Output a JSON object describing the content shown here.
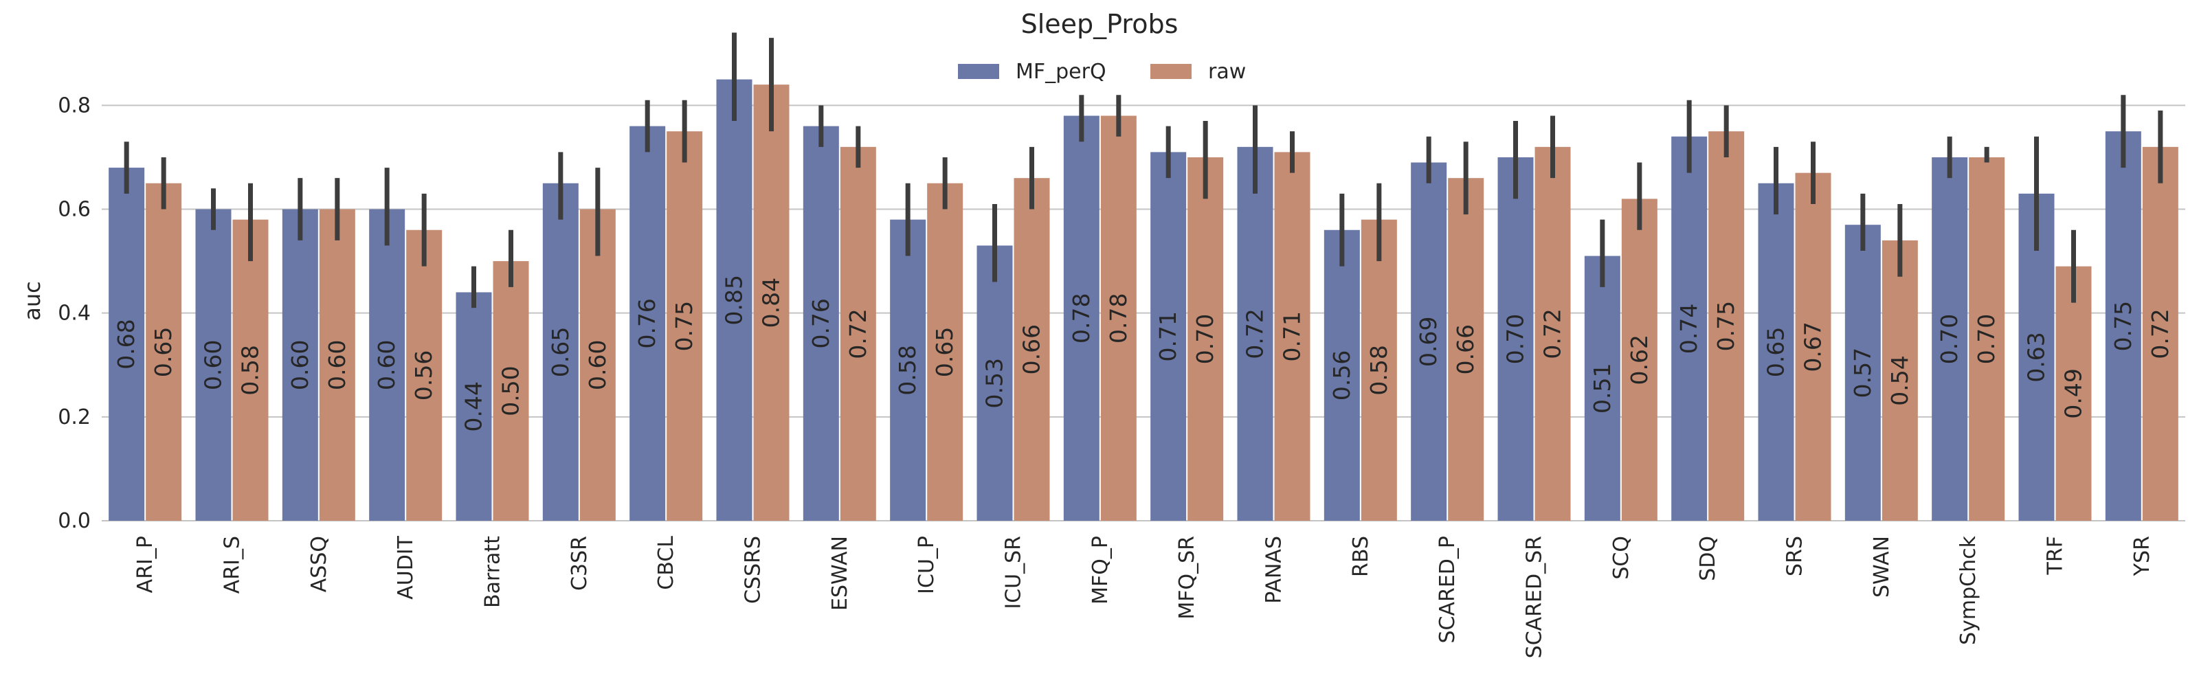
{
  "chart_data": {
    "type": "bar",
    "title": "Sleep_Probs",
    "xlabel": "",
    "ylabel": "auc",
    "ylim": [
      0,
      0.95
    ],
    "yticks": [
      "0.0",
      "0.2",
      "0.4",
      "0.6",
      "0.8"
    ],
    "grid": true,
    "legend_position": "top-center",
    "categories": [
      "ARI_P",
      "ARI_S",
      "ASSQ",
      "AUDIT",
      "Barratt",
      "C3SR",
      "CBCL",
      "CSSRS",
      "ESWAN",
      "ICU_P",
      "ICU_SR",
      "MFQ_P",
      "MFQ_SR",
      "PANAS",
      "RBS",
      "SCARED_P",
      "SCARED_SR",
      "SCQ",
      "SDQ",
      "SRS",
      "SWAN",
      "SympChck",
      "TRF",
      "YSR"
    ],
    "series": [
      {
        "name": "MF_perQ",
        "color": "#6a78a8",
        "values": [
          0.68,
          0.6,
          0.6,
          0.6,
          0.44,
          0.65,
          0.76,
          0.85,
          0.76,
          0.58,
          0.53,
          0.78,
          0.71,
          0.72,
          0.56,
          0.69,
          0.7,
          0.51,
          0.74,
          0.65,
          0.57,
          0.7,
          0.63,
          0.75
        ],
        "labels": [
          "0.68",
          "0.60",
          "0.60",
          "0.60",
          "0.44",
          "0.65",
          "0.76",
          "0.85",
          "0.76",
          "0.58",
          "0.53",
          "0.78",
          "0.71",
          "0.72",
          "0.56",
          "0.69",
          "0.70",
          "0.51",
          "0.74",
          "0.65",
          "0.57",
          "0.70",
          "0.63",
          "0.75"
        ],
        "err_low": [
          0.63,
          0.56,
          0.54,
          0.53,
          0.41,
          0.58,
          0.71,
          0.77,
          0.72,
          0.51,
          0.46,
          0.73,
          0.66,
          0.63,
          0.49,
          0.65,
          0.62,
          0.45,
          0.67,
          0.59,
          0.52,
          0.66,
          0.52,
          0.68
        ],
        "err_high": [
          0.73,
          0.64,
          0.66,
          0.68,
          0.49,
          0.71,
          0.81,
          0.94,
          0.8,
          0.65,
          0.61,
          0.82,
          0.76,
          0.8,
          0.63,
          0.74,
          0.77,
          0.58,
          0.81,
          0.72,
          0.63,
          0.74,
          0.74,
          0.82
        ]
      },
      {
        "name": "raw",
        "color": "#c48d73",
        "values": [
          0.65,
          0.58,
          0.6,
          0.56,
          0.5,
          0.6,
          0.75,
          0.84,
          0.72,
          0.65,
          0.66,
          0.78,
          0.7,
          0.71,
          0.58,
          0.66,
          0.72,
          0.62,
          0.75,
          0.67,
          0.54,
          0.7,
          0.49,
          0.72
        ],
        "labels": [
          "0.65",
          "0.58",
          "0.60",
          "0.56",
          "0.50",
          "0.60",
          "0.75",
          "0.84",
          "0.72",
          "0.65",
          "0.66",
          "0.78",
          "0.70",
          "0.71",
          "0.58",
          "0.66",
          "0.72",
          "0.62",
          "0.75",
          "0.67",
          "0.54",
          "0.70",
          "0.49",
          "0.72"
        ],
        "err_low": [
          0.6,
          0.5,
          0.54,
          0.49,
          0.45,
          0.51,
          0.69,
          0.75,
          0.68,
          0.6,
          0.6,
          0.74,
          0.62,
          0.67,
          0.5,
          0.59,
          0.66,
          0.56,
          0.7,
          0.61,
          0.47,
          0.69,
          0.42,
          0.65
        ],
        "err_high": [
          0.7,
          0.65,
          0.66,
          0.63,
          0.56,
          0.68,
          0.81,
          0.93,
          0.76,
          0.7,
          0.72,
          0.82,
          0.77,
          0.75,
          0.65,
          0.73,
          0.78,
          0.69,
          0.8,
          0.73,
          0.61,
          0.72,
          0.56,
          0.79
        ]
      }
    ]
  }
}
